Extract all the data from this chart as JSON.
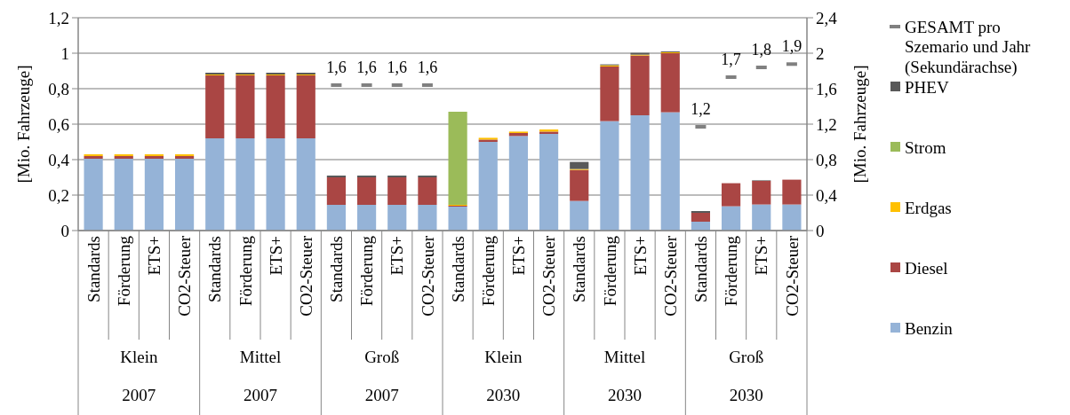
{
  "chart_data": {
    "type": "bar",
    "stacked": true,
    "ylabel": "[Mio. Fahrzeuge]",
    "y2label": "[Mio. Fahrzeuge]",
    "categories": [
      "Standards",
      "Förderung",
      "ETS+",
      "CO2-Steuer",
      "Standards",
      "Förderung",
      "ETS+",
      "CO2-Steuer",
      "Standards",
      "Förderung",
      "ETS+",
      "CO2-Steuer",
      "Standards",
      "Förderung",
      "ETS+",
      "CO2-Steuer",
      "Standards",
      "Förderung",
      "ETS+",
      "CO2-Steuer",
      "Standards",
      "Förderung",
      "ETS+",
      "CO2-Steuer"
    ],
    "annotations": [
      "Klein",
      "Mittel",
      "Groß",
      "Klein",
      "Mittel",
      "Groß",
      "2007",
      "2007",
      "2007",
      "2030",
      "2030",
      "2030"
    ],
    "series": [
      {
        "name": "Benzin",
        "color": "#95b3d7",
        "values": [
          0.405,
          0.405,
          0.405,
          0.405,
          0.52,
          0.52,
          0.52,
          0.52,
          0.145,
          0.145,
          0.145,
          0.145,
          0.135,
          0.5,
          0.533,
          0.545,
          0.167,
          0.617,
          0.65,
          0.667,
          0.05,
          0.137,
          0.147,
          0.147
        ]
      },
      {
        "name": "Diesel",
        "color": "#aa4644",
        "values": [
          0.015,
          0.015,
          0.015,
          0.015,
          0.355,
          0.355,
          0.355,
          0.355,
          0.155,
          0.155,
          0.155,
          0.155,
          0.005,
          0.013,
          0.017,
          0.013,
          0.175,
          0.308,
          0.337,
          0.333,
          0.05,
          0.13,
          0.133,
          0.14
        ]
      },
      {
        "name": "Erdgas",
        "color": "#ffc000",
        "values": [
          0.01,
          0.01,
          0.01,
          0.01,
          0.005,
          0.005,
          0.005,
          0.005,
          0,
          0,
          0,
          0,
          0.005,
          0.01,
          0.008,
          0.012,
          0.005,
          0.007,
          0.005,
          0.005,
          0,
          0,
          0,
          0
        ]
      },
      {
        "name": "Strom",
        "color": "#9bbb59",
        "values": [
          0,
          0,
          0,
          0,
          0,
          0,
          0,
          0,
          0,
          0,
          0,
          0,
          0.525,
          0,
          0,
          0,
          0,
          0,
          0,
          0,
          0,
          0,
          0,
          0
        ]
      },
      {
        "name": "PHEV",
        "color": "#595959",
        "values": [
          0,
          0,
          0,
          0,
          0.01,
          0.01,
          0.01,
          0.01,
          0.01,
          0.01,
          0.01,
          0.01,
          0,
          0,
          0,
          0,
          0.04,
          0.005,
          0.01,
          0.005,
          0.01,
          0,
          0.003,
          0
        ]
      },
      {
        "name": "GESAMT pro Szemario und Jahr (Sekundärachse)",
        "type": "scatter",
        "axis": "y2",
        "color": "#808080",
        "values": [
          null,
          null,
          null,
          null,
          null,
          null,
          null,
          null,
          1.64,
          1.64,
          1.64,
          1.64,
          null,
          null,
          null,
          null,
          null,
          null,
          null,
          null,
          1.17,
          1.73,
          1.84,
          1.877
        ],
        "value_labels": [
          null,
          null,
          null,
          null,
          null,
          null,
          null,
          null,
          "1,6",
          "1,6",
          "1,6",
          "1,6",
          null,
          null,
          null,
          null,
          null,
          null,
          null,
          null,
          "1,2",
          "1,7",
          "1,8",
          "1,9"
        ]
      }
    ],
    "ylim": [
      0,
      1.2
    ],
    "yticks": [
      0,
      {
        "value": 0.2,
        "label": "0,2"
      },
      {
        "value": 0.4,
        "label": "0,4"
      },
      {
        "value": 0.6,
        "label": "0,6"
      },
      {
        "value": 0.8,
        "label": "0,8"
      },
      1,
      {
        "value": 1.2,
        "label": "1,2"
      }
    ],
    "y2lim": [
      0,
      2.4
    ],
    "y2ticks": [
      0,
      {
        "value": 0.4,
        "label": "0,4"
      },
      {
        "value": 0.8,
        "label": "0,8"
      },
      {
        "value": 1.2,
        "label": "1,2"
      },
      {
        "value": 1.6,
        "label": "1,6"
      },
      2,
      {
        "value": 2.4,
        "label": "2,4"
      }
    ],
    "grid": "y",
    "legend": "right"
  }
}
